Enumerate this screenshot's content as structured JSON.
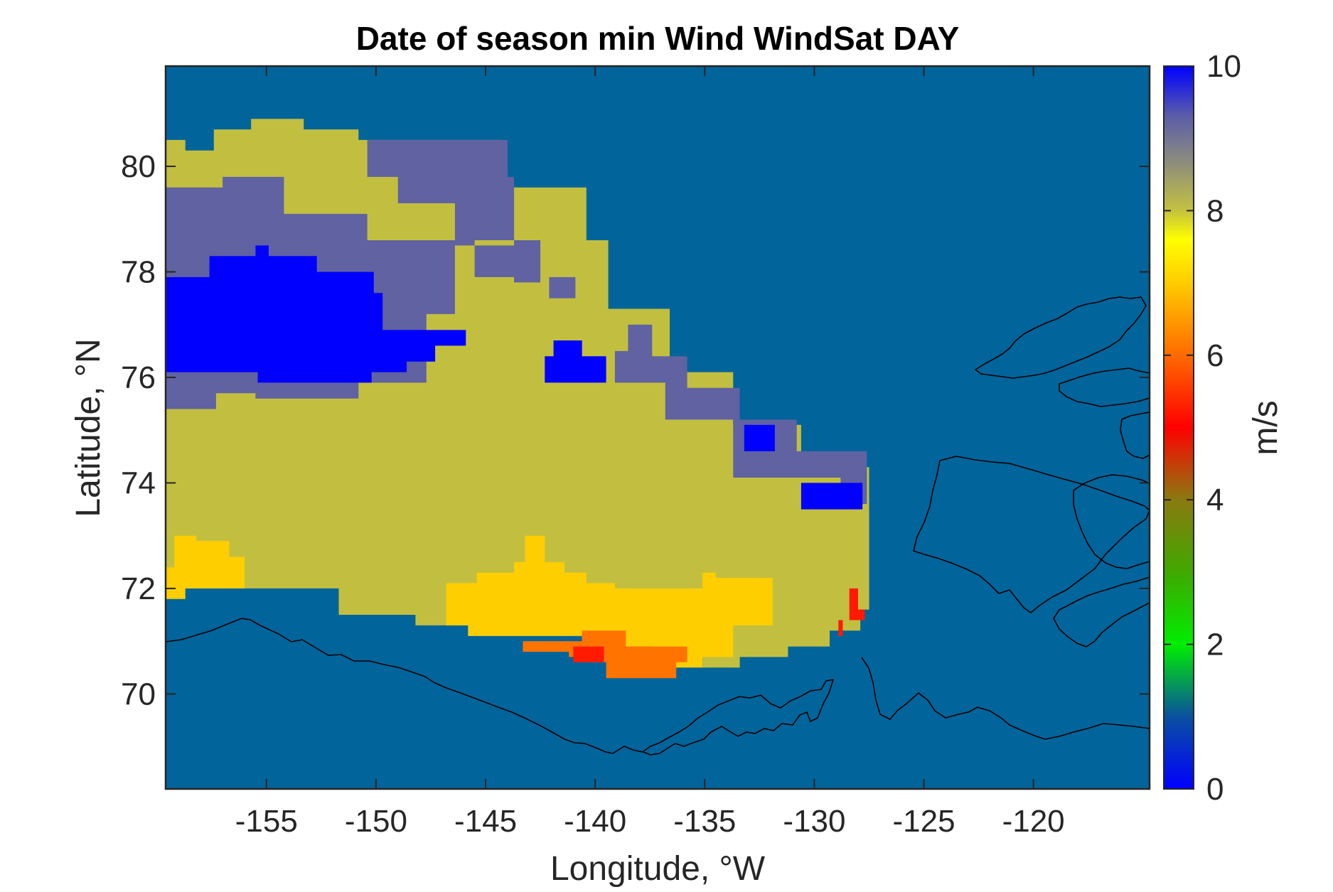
{
  "chart_data": {
    "type": "heatmap",
    "title": "Date of season min Wind WindSat DAY",
    "xlabel": "Longitude, °W",
    "ylabel": "Latitude, °N",
    "xlim": [
      -159.6,
      -114.7
    ],
    "ylim": [
      68.2,
      81.9
    ],
    "x_ticks": [
      -155,
      -150,
      -145,
      -140,
      -135,
      -130,
      -125,
      -120
    ],
    "x_tick_labels": [
      "-155",
      "-150",
      "-145",
      "-140",
      "-135",
      "-130",
      "-125",
      "-120"
    ],
    "y_ticks": [
      70,
      72,
      74,
      76,
      78,
      80
    ],
    "y_tick_labels": [
      "70",
      "72",
      "74",
      "76",
      "78",
      "80"
    ],
    "grid": false,
    "background_color": "#01649a",
    "colorbar": {
      "label": "m/s",
      "range": [
        0,
        10
      ],
      "ticks": [
        0,
        2,
        4,
        6,
        8,
        10
      ],
      "tick_labels": [
        "0",
        "2",
        "4",
        "6",
        "8",
        "10"
      ],
      "stops": [
        {
          "value": 0,
          "color": "#0000ff"
        },
        {
          "value": 1,
          "color": "#0a50a0"
        },
        {
          "value": 2,
          "color": "#00ee00"
        },
        {
          "value": 3,
          "color": "#40a800"
        },
        {
          "value": 4,
          "color": "#8a7a10"
        },
        {
          "value": 5,
          "color": "#ff0000"
        },
        {
          "value": 6,
          "color": "#ff6a00"
        },
        {
          "value": 7,
          "color": "#ffcc00"
        },
        {
          "value": 7.6,
          "color": "#ffff00"
        },
        {
          "value": 8,
          "color": "#c4c23f"
        },
        {
          "value": 8.7,
          "color": "#8a8a80"
        },
        {
          "value": 9.3,
          "color": "#5c5ea8"
        },
        {
          "value": 10,
          "color": "#0000ff"
        }
      ]
    },
    "regions": [
      {
        "value": 8,
        "color": "#c2bf40",
        "polygon": [
          [
            -159.6,
            80.5
          ],
          [
            -158.7,
            80.5
          ],
          [
            -158.7,
            80.3
          ],
          [
            -157.4,
            80.3
          ],
          [
            -157.4,
            80.7
          ],
          [
            -155.7,
            80.7
          ],
          [
            -155.7,
            80.9
          ],
          [
            -153.3,
            80.9
          ],
          [
            -153.3,
            80.7
          ],
          [
            -150.8,
            80.7
          ],
          [
            -150.8,
            80.5
          ],
          [
            -144.4,
            80.5
          ],
          [
            -144.4,
            79.6
          ],
          [
            -140.4,
            79.6
          ],
          [
            -140.4,
            78.6
          ],
          [
            -139.4,
            78.6
          ],
          [
            -139.4,
            77.3
          ],
          [
            -136.6,
            77.3
          ],
          [
            -136.6,
            76.1
          ],
          [
            -133.7,
            76.1
          ],
          [
            -133.7,
            75.1
          ],
          [
            -130.6,
            75.1
          ],
          [
            -130.6,
            74.3
          ],
          [
            -127.5,
            74.3
          ],
          [
            -127.5,
            71.6
          ],
          [
            -127.9,
            71.6
          ],
          [
            -127.9,
            71.2
          ],
          [
            -129.3,
            71.2
          ],
          [
            -129.3,
            70.9
          ],
          [
            -131.2,
            70.9
          ],
          [
            -131.2,
            70.7
          ],
          [
            -133.4,
            70.7
          ],
          [
            -133.4,
            70.5
          ],
          [
            -135.1,
            70.5
          ],
          [
            -135.1,
            70.9
          ],
          [
            -140.4,
            70.9
          ],
          [
            -140.4,
            71.1
          ],
          [
            -145.8,
            71.1
          ],
          [
            -145.8,
            71.3
          ],
          [
            -148.2,
            71.3
          ],
          [
            -148.2,
            71.5
          ],
          [
            -151.7,
            71.5
          ],
          [
            -151.7,
            72.0
          ],
          [
            -159.6,
            72.0
          ]
        ]
      },
      {
        "value": 9.2,
        "color": "#6062a2",
        "polygon": [
          [
            -159.6,
            79.6
          ],
          [
            -157.0,
            79.6
          ],
          [
            -157.0,
            79.8
          ],
          [
            -154.2,
            79.8
          ],
          [
            -154.2,
            79.1
          ],
          [
            -150.4,
            79.1
          ],
          [
            -150.4,
            78.6
          ],
          [
            -145.5,
            78.6
          ],
          [
            -145.5,
            77.9
          ],
          [
            -142.1,
            77.9
          ],
          [
            -142.1,
            77.5
          ],
          [
            -140.9,
            77.5
          ],
          [
            -140.9,
            77.9
          ],
          [
            -143.1,
            77.9
          ],
          [
            -143.1,
            78.5
          ],
          [
            -146.4,
            78.5
          ],
          [
            -146.4,
            77.2
          ],
          [
            -147.7,
            77.2
          ],
          [
            -147.7,
            75.9
          ],
          [
            -150.8,
            75.9
          ],
          [
            -150.8,
            75.6
          ],
          [
            -155.5,
            75.6
          ],
          [
            -155.5,
            75.7
          ],
          [
            -157.3,
            75.7
          ],
          [
            -157.3,
            75.4
          ],
          [
            -159.6,
            75.4
          ]
        ]
      },
      {
        "value": 9.2,
        "color": "#6062a2",
        "polygon": [
          [
            -150.4,
            80.5
          ],
          [
            -144.0,
            80.5
          ],
          [
            -144.0,
            79.8
          ],
          [
            -143.7,
            79.8
          ],
          [
            -143.7,
            77.8
          ],
          [
            -142.5,
            77.8
          ],
          [
            -142.5,
            78.6
          ],
          [
            -146.4,
            78.6
          ],
          [
            -146.4,
            79.3
          ],
          [
            -149.0,
            79.3
          ],
          [
            -149.0,
            79.8
          ],
          [
            -150.4,
            79.8
          ]
        ]
      },
      {
        "value": 9.2,
        "color": "#6062a2",
        "polygon": [
          [
            -138.5,
            77.0
          ],
          [
            -137.4,
            77.0
          ],
          [
            -137.4,
            76.4
          ],
          [
            -135.8,
            76.4
          ],
          [
            -135.8,
            75.8
          ],
          [
            -133.4,
            75.8
          ],
          [
            -133.4,
            75.2
          ],
          [
            -130.8,
            75.2
          ],
          [
            -130.8,
            74.6
          ],
          [
            -127.6,
            74.6
          ],
          [
            -127.6,
            73.6
          ],
          [
            -128.8,
            73.6
          ],
          [
            -128.8,
            74.1
          ],
          [
            -133.7,
            74.1
          ],
          [
            -133.7,
            75.2
          ],
          [
            -136.8,
            75.2
          ],
          [
            -136.8,
            75.9
          ],
          [
            -139.1,
            75.9
          ],
          [
            -139.1,
            76.5
          ],
          [
            -138.5,
            76.5
          ]
        ]
      },
      {
        "value": 10,
        "color": "#0000ff",
        "polygon": [
          [
            -159.6,
            77.9
          ],
          [
            -157.6,
            77.9
          ],
          [
            -157.6,
            78.3
          ],
          [
            -155.5,
            78.3
          ],
          [
            -155.5,
            78.5
          ],
          [
            -154.9,
            78.5
          ],
          [
            -154.9,
            78.3
          ],
          [
            -152.7,
            78.3
          ],
          [
            -152.7,
            78.0
          ],
          [
            -150.1,
            78.0
          ],
          [
            -150.1,
            77.6
          ],
          [
            -149.7,
            77.6
          ],
          [
            -149.7,
            76.9
          ],
          [
            -146.8,
            76.9
          ],
          [
            -146.8,
            76.6
          ],
          [
            -147.3,
            76.6
          ],
          [
            -147.3,
            76.3
          ],
          [
            -148.6,
            76.3
          ],
          [
            -148.6,
            76.1
          ],
          [
            -150.2,
            76.1
          ],
          [
            -150.2,
            75.9
          ],
          [
            -155.4,
            75.9
          ],
          [
            -155.4,
            76.1
          ],
          [
            -159.6,
            76.1
          ]
        ]
      },
      {
        "value": 10,
        "color": "#0000ff",
        "polygon": [
          [
            -146.8,
            76.9
          ],
          [
            -145.9,
            76.9
          ],
          [
            -145.9,
            76.6
          ],
          [
            -146.8,
            76.6
          ]
        ]
      },
      {
        "value": 10,
        "color": "#0000ff",
        "polygon": [
          [
            -141.9,
            76.7
          ],
          [
            -140.6,
            76.7
          ],
          [
            -140.6,
            76.4
          ],
          [
            -139.5,
            76.4
          ],
          [
            -139.5,
            75.9
          ],
          [
            -142.3,
            75.9
          ],
          [
            -142.3,
            76.4
          ],
          [
            -141.9,
            76.4
          ]
        ]
      },
      {
        "value": 10,
        "color": "#0000ff",
        "polygon": [
          [
            -133.2,
            75.1
          ],
          [
            -131.8,
            75.1
          ],
          [
            -131.8,
            74.6
          ],
          [
            -133.2,
            74.6
          ]
        ]
      },
      {
        "value": 10,
        "color": "#0000ff",
        "polygon": [
          [
            -130.6,
            74.0
          ],
          [
            -127.8,
            74.0
          ],
          [
            -127.8,
            73.5
          ],
          [
            -130.6,
            73.5
          ]
        ]
      },
      {
        "value": 7,
        "color": "#fece00",
        "polygon": [
          [
            -159.6,
            72.4
          ],
          [
            -159.2,
            72.4
          ],
          [
            -159.2,
            73.0
          ],
          [
            -158.2,
            73.0
          ],
          [
            -158.2,
            72.9
          ],
          [
            -156.7,
            72.9
          ],
          [
            -156.7,
            72.6
          ],
          [
            -156.0,
            72.6
          ],
          [
            -156.0,
            72.0
          ],
          [
            -158.7,
            72.0
          ],
          [
            -158.7,
            71.8
          ],
          [
            -159.6,
            71.8
          ]
        ]
      },
      {
        "value": 7,
        "color": "#fece00",
        "polygon": [
          [
            -146.8,
            71.3
          ],
          [
            -146.8,
            72.1
          ],
          [
            -145.4,
            72.1
          ],
          [
            -145.4,
            72.3
          ],
          [
            -143.7,
            72.3
          ],
          [
            -143.7,
            72.5
          ],
          [
            -143.2,
            72.5
          ],
          [
            -143.2,
            73.0
          ],
          [
            -142.3,
            73.0
          ],
          [
            -142.3,
            72.5
          ],
          [
            -141.4,
            72.5
          ],
          [
            -141.4,
            72.3
          ],
          [
            -140.4,
            72.3
          ],
          [
            -140.4,
            72.1
          ],
          [
            -139.1,
            72.1
          ],
          [
            -139.1,
            72.0
          ],
          [
            -135.1,
            72.0
          ],
          [
            -135.1,
            72.3
          ],
          [
            -134.5,
            72.3
          ],
          [
            -134.5,
            72.2
          ],
          [
            -131.9,
            72.2
          ],
          [
            -131.9,
            71.3
          ],
          [
            -133.7,
            71.3
          ],
          [
            -133.7,
            70.7
          ],
          [
            -135.1,
            70.7
          ],
          [
            -135.1,
            70.5
          ],
          [
            -137.4,
            70.5
          ],
          [
            -137.4,
            70.9
          ],
          [
            -140.6,
            70.9
          ],
          [
            -140.6,
            71.1
          ],
          [
            -145.8,
            71.1
          ],
          [
            -145.8,
            71.3
          ]
        ]
      },
      {
        "value": 6,
        "color": "#ff7300",
        "polygon": [
          [
            -140.6,
            71.2
          ],
          [
            -138.6,
            71.2
          ],
          [
            -138.6,
            70.9
          ],
          [
            -135.8,
            70.9
          ],
          [
            -135.8,
            70.6
          ],
          [
            -136.3,
            70.6
          ],
          [
            -136.3,
            70.3
          ],
          [
            -139.5,
            70.3
          ],
          [
            -139.5,
            70.6
          ],
          [
            -140.1,
            70.6
          ],
          [
            -140.1,
            70.7
          ],
          [
            -141.2,
            70.7
          ],
          [
            -141.2,
            70.8
          ],
          [
            -143.3,
            70.8
          ],
          [
            -143.3,
            71.0
          ],
          [
            -140.6,
            71.0
          ]
        ]
      },
      {
        "value": 5,
        "color": "#ff1a00",
        "polygon": [
          [
            -141.0,
            70.9
          ],
          [
            -139.6,
            70.9
          ],
          [
            -139.6,
            70.6
          ],
          [
            -141.0,
            70.6
          ]
        ]
      },
      {
        "value": 5,
        "color": "#ff1a00",
        "polygon": [
          [
            -128.4,
            72.0
          ],
          [
            -128.0,
            72.0
          ],
          [
            -128.0,
            71.6
          ],
          [
            -127.7,
            71.6
          ],
          [
            -127.7,
            71.4
          ],
          [
            -128.7,
            71.4
          ],
          [
            -128.7,
            71.1
          ],
          [
            -128.9,
            71.1
          ],
          [
            -128.9,
            71.4
          ],
          [
            -128.4,
            71.4
          ]
        ]
      }
    ]
  }
}
